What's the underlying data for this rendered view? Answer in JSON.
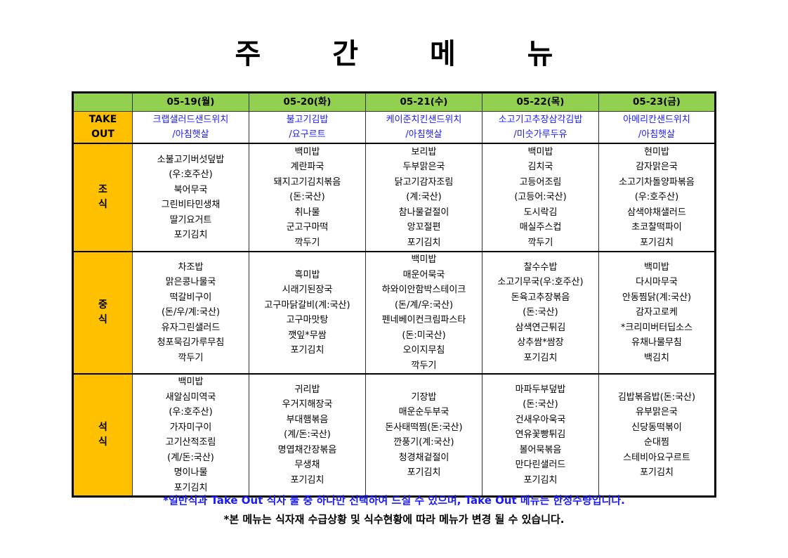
{
  "title": "주 간 메 뉴",
  "days": [
    "05-19(월)",
    "05-20(화)",
    "05-21(수)",
    "05-22(목)",
    "05-23(금)"
  ],
  "rows": [
    {
      "key": "take",
      "label": [
        "TAKE",
        "OUT"
      ],
      "cells": [
        [
          "크랩샐러드샌드위치",
          "/아침햇살"
        ],
        [
          "불고기김밥",
          "/요구르트"
        ],
        [
          "케이준치킨샌드위치",
          "/아침햇살"
        ],
        [
          "소고기고추장삼각김밥",
          "/미숫가루두유"
        ],
        [
          "아메리칸샌드위치",
          "/아침햇살"
        ]
      ]
    },
    {
      "key": "bf",
      "label": [
        "조",
        "식"
      ],
      "cells": [
        [
          "소불고기버섯덮밥",
          "(우:호주산)",
          "북어무국",
          "그린비타민생채",
          "딸기요거트",
          "포기김치"
        ],
        [
          "백미밥",
          "계란파국",
          "돼지고기김치볶음",
          "(돈:국산)",
          "취나물",
          "군고구마떡",
          "깍두기"
        ],
        [
          "보리밥",
          "두부맑은국",
          "닭고기감자조림",
          "(계:국산)",
          "참나물겉절이",
          "앙꼬절편",
          "포기김치"
        ],
        [
          "백미밥",
          "김치국",
          "고등어조림",
          "(고등어:국산)",
          "도시락김",
          "매실주스컵",
          "깍두기"
        ],
        [
          "현미밥",
          "감자맑은국",
          "소고기차돌양파볶음",
          "(우:호주산)",
          "삼색야채샐러드",
          "초코찰떡파이",
          "포기김치"
        ]
      ]
    },
    {
      "key": "lu",
      "label": [
        "중",
        "식"
      ],
      "cells": [
        [
          "차조밥",
          "맑은콩나물국",
          "떡갈비구이",
          "(돈/우/계:국산)",
          "유자그린샐러드",
          "청포묵김가루무침",
          "깍두기"
        ],
        [
          "흑미밥",
          "시래기된장국",
          "고구마닭갈비(계:국산)",
          "고구마맛탕",
          "깻잎*무쌈",
          "포기김치"
        ],
        [
          "백미밥",
          "매운어묵국",
          "하와이안함박스테이크",
          "(돈/계/우:국산)",
          "펜네베이컨크림파스타",
          "(돈:미국산)",
          "오이지무침",
          "깍두기"
        ],
        [
          "찰수수밥",
          "소고기무국(우:호주산)",
          "돈육고추장볶음",
          "(돈:국산)",
          "삼색연근튀김",
          "상추쌈*쌈장",
          "포기김치"
        ],
        [
          "백미밥",
          "다시마무국",
          "안동찜닭(계:국산)",
          "감자고로케",
          "*크리미버터딥소스",
          "유채나물무침",
          "백김치"
        ]
      ]
    },
    {
      "key": "di",
      "label": [
        "석",
        "식"
      ],
      "cells": [
        [
          "백미밥",
          "새알심미역국",
          "(우:호주산)",
          "가자미구이",
          "고기산적조림",
          "(계/돈:국산)",
          "명이나물",
          "포기김치"
        ],
        [
          "귀리밥",
          "우거지해장국",
          "부대햄볶음",
          "(계/돈:국산)",
          "명엽채간장볶음",
          "무생채",
          "포기김치"
        ],
        [
          "기장밥",
          "매운순두부국",
          "돈사태떡찜(돈:국산)",
          "깐풍기(계:국산)",
          "청경채겉절이",
          "포기김치"
        ],
        [
          "마파두부덮밥",
          "(돈:국산)",
          "건새우아욱국",
          "연유꽃빵튀김",
          "볼어묵볶음",
          "만다린샐러드",
          "포기김치"
        ],
        [
          "김밥볶음밥(돈:국산)",
          "유부맑은국",
          "신당동떡볶이",
          "순대찜",
          "스테비아요구르트",
          "포기김치"
        ]
      ]
    }
  ],
  "notes": [
    "*일반식과 Take Out 식사 둘 중 하나만 선택하여 드실 수 있으며, Take Out 메뉴는 한정수량입니다.",
    "*본 메뉴는 식자재 수급상황 및 식수현황에 따라 메뉴가 변경 될 수 있습니다."
  ],
  "colors": {
    "header_bg": "#92d050",
    "side_bg": "#ffc000",
    "takeout_text": "#1a1aff",
    "note1_text": "#1a1aff"
  }
}
